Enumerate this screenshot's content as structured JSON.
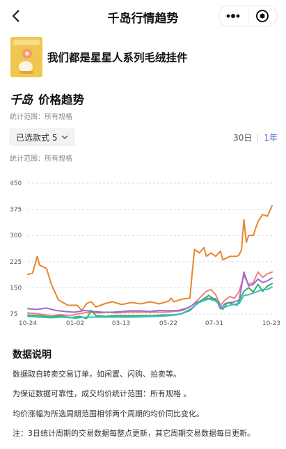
{
  "header": {
    "title": "千岛行情趋势",
    "back_icon": "chevron-left-icon",
    "more_icon": "more-dots-icon",
    "close_icon": "target-circle-icon"
  },
  "product": {
    "name": "我们都是星星人系列毛绒挂件",
    "thumbnail_color": "#f0c64e"
  },
  "section": {
    "brand": "千岛",
    "title": "价格趋势",
    "scope_text": "统计范围：所有规格"
  },
  "controls": {
    "style_select_label": "已选款式 5",
    "periods": [
      "30日",
      "1年"
    ],
    "active_period": "1年",
    "accent_color": "#5b5fd1"
  },
  "chart_scope_text": "统计范围：所有规格",
  "chart_data": {
    "type": "line",
    "y_ticks": [
      "450",
      "375",
      "300",
      "225",
      "150",
      "75"
    ],
    "ylim": [
      75,
      450
    ],
    "x_ticks": [
      "10-24",
      "01-02",
      "03-13",
      "05-22",
      "07-31",
      "10-23"
    ],
    "x_range": [
      "10-24",
      "10-23"
    ],
    "grid": "horizontal-dashed",
    "series": [
      {
        "color": "#e8862e",
        "points": [
          [
            0,
            188
          ],
          [
            2,
            192
          ],
          [
            4,
            240
          ],
          [
            5,
            215
          ],
          [
            8,
            205
          ],
          [
            10,
            160
          ],
          [
            13,
            115
          ],
          [
            17,
            100
          ],
          [
            21,
            100
          ],
          [
            23,
            85
          ],
          [
            25,
            105
          ],
          [
            27,
            110
          ],
          [
            29,
            95
          ],
          [
            33,
            105
          ],
          [
            36,
            110
          ],
          [
            40,
            102
          ],
          [
            44,
            108
          ],
          [
            48,
            104
          ],
          [
            52,
            110
          ],
          [
            56,
            104
          ],
          [
            60,
            112
          ],
          [
            61,
            120
          ],
          [
            62,
            110
          ],
          [
            66,
            118
          ],
          [
            69,
            120
          ],
          [
            70,
            195
          ],
          [
            71,
            260
          ],
          [
            73,
            250
          ],
          [
            75,
            265
          ],
          [
            76,
            240
          ],
          [
            78,
            250
          ],
          [
            80,
            240
          ],
          [
            82,
            255
          ],
          [
            83,
            230
          ],
          [
            86,
            240
          ],
          [
            89,
            240
          ],
          [
            90,
            245
          ],
          [
            91,
            260
          ],
          [
            92,
            345
          ],
          [
            93,
            280
          ],
          [
            94,
            300
          ],
          [
            96,
            300
          ],
          [
            98,
            340
          ],
          [
            100,
            360
          ],
          [
            102,
            355
          ],
          [
            104,
            385
          ]
        ]
      },
      {
        "color": "#ef7f7f",
        "points": [
          [
            0,
            78
          ],
          [
            5,
            75
          ],
          [
            10,
            70
          ],
          [
            14,
            73
          ],
          [
            18,
            70
          ],
          [
            22,
            76
          ],
          [
            26,
            80
          ],
          [
            30,
            78
          ],
          [
            34,
            80
          ],
          [
            38,
            78
          ],
          [
            42,
            80
          ],
          [
            46,
            80
          ],
          [
            50,
            80
          ],
          [
            54,
            80
          ],
          [
            58,
            80
          ],
          [
            62,
            82
          ],
          [
            66,
            85
          ],
          [
            70,
            100
          ],
          [
            73,
            120
          ],
          [
            76,
            140
          ],
          [
            78,
            145
          ],
          [
            80,
            130
          ],
          [
            82,
            100
          ],
          [
            84,
            115
          ],
          [
            86,
            125
          ],
          [
            88,
            120
          ],
          [
            90,
            140
          ],
          [
            92,
            185
          ],
          [
            94,
            160
          ],
          [
            96,
            165
          ],
          [
            98,
            195
          ],
          [
            100,
            180
          ],
          [
            102,
            190
          ],
          [
            104,
            195
          ]
        ]
      },
      {
        "color": "#9d6ad9",
        "points": [
          [
            0,
            90
          ],
          [
            4,
            88
          ],
          [
            8,
            92
          ],
          [
            12,
            85
          ],
          [
            16,
            82
          ],
          [
            20,
            80
          ],
          [
            24,
            85
          ],
          [
            28,
            82
          ],
          [
            32,
            80
          ],
          [
            36,
            80
          ],
          [
            40,
            82
          ],
          [
            44,
            84
          ],
          [
            48,
            84
          ],
          [
            52,
            82
          ],
          [
            56,
            85
          ],
          [
            60,
            84
          ],
          [
            64,
            85
          ],
          [
            68,
            92
          ],
          [
            72,
            108
          ],
          [
            76,
            120
          ],
          [
            80,
            118
          ],
          [
            82,
            90
          ],
          [
            84,
            105
          ],
          [
            88,
            110
          ],
          [
            90,
            115
          ],
          [
            92,
            195
          ],
          [
            94,
            155
          ],
          [
            96,
            160
          ],
          [
            98,
            175
          ],
          [
            100,
            165
          ],
          [
            102,
            170
          ],
          [
            104,
            178
          ]
        ]
      },
      {
        "color": "#3aae5c",
        "points": [
          [
            0,
            72
          ],
          [
            5,
            70
          ],
          [
            10,
            66
          ],
          [
            14,
            70
          ],
          [
            18,
            64
          ],
          [
            22,
            68
          ],
          [
            25,
            62
          ],
          [
            27,
            85
          ],
          [
            29,
            70
          ],
          [
            33,
            68
          ],
          [
            37,
            70
          ],
          [
            41,
            70
          ],
          [
            45,
            70
          ],
          [
            49,
            70
          ],
          [
            53,
            70
          ],
          [
            57,
            72
          ],
          [
            61,
            72
          ],
          [
            65,
            75
          ],
          [
            69,
            85
          ],
          [
            73,
            110
          ],
          [
            77,
            128
          ],
          [
            81,
            110
          ],
          [
            83,
            88
          ],
          [
            85,
            108
          ],
          [
            89,
            100
          ],
          [
            92,
            140
          ],
          [
            94,
            150
          ],
          [
            96,
            138
          ],
          [
            98,
            160
          ],
          [
            100,
            140
          ],
          [
            102,
            155
          ],
          [
            104,
            162
          ]
        ]
      },
      {
        "color": "#33c2bd",
        "points": [
          [
            0,
            68
          ],
          [
            5,
            66
          ],
          [
            10,
            64
          ],
          [
            15,
            66
          ],
          [
            20,
            63
          ],
          [
            25,
            66
          ],
          [
            30,
            66
          ],
          [
            35,
            66
          ],
          [
            40,
            66
          ],
          [
            45,
            66
          ],
          [
            50,
            67
          ],
          [
            55,
            68
          ],
          [
            60,
            70
          ],
          [
            65,
            74
          ],
          [
            69,
            88
          ],
          [
            73,
            108
          ],
          [
            77,
            118
          ],
          [
            80,
            112
          ],
          [
            83,
            92
          ],
          [
            86,
            100
          ],
          [
            90,
            105
          ],
          [
            92,
            128
          ],
          [
            94,
            130
          ],
          [
            96,
            135
          ],
          [
            98,
            140
          ],
          [
            100,
            145
          ],
          [
            102,
            145
          ],
          [
            104,
            152
          ]
        ]
      }
    ]
  },
  "notes": {
    "title": "数据说明",
    "lines": [
      "数据取自转卖交易订单，如闲置、闪购、拍卖等。",
      "为保证数据可靠性，成交均价统计范围：所有规格 。",
      "均价涨幅为所选周期范围相邻两个周期的均价同比变化。",
      "注：3日统计周期的交易数据每整点更新，其它周期交易数据每日更新。"
    ]
  }
}
